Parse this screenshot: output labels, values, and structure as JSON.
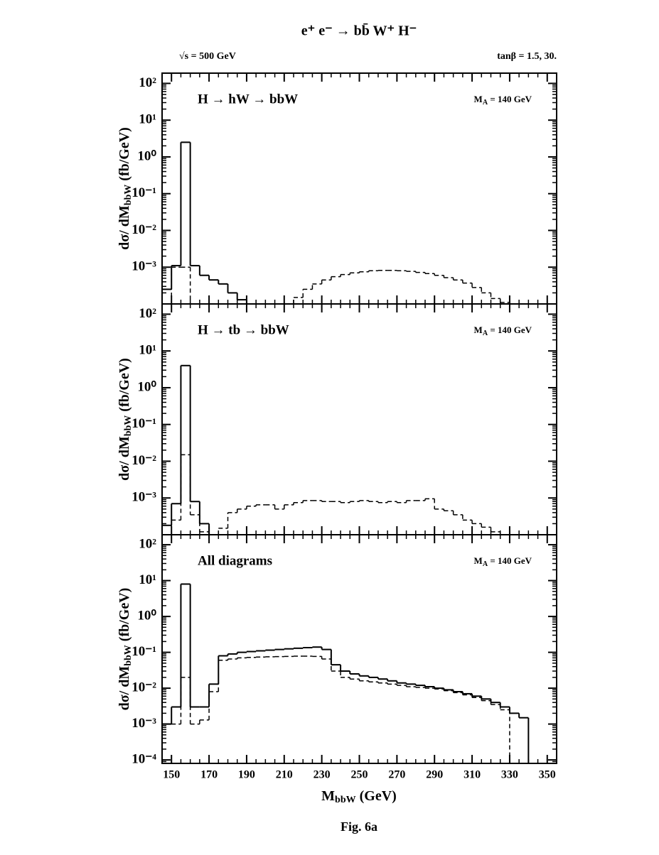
{
  "figure": {
    "title": "e⁺ e⁻ →  bb̄ W⁺ H⁻",
    "energy": "√s =  500 GeV",
    "tan_beta": "tanβ = 1.5, 30.",
    "xlabel": [
      "M",
      "bbW",
      " (GeV)"
    ],
    "caption": "Fig. 6a"
  },
  "chart_data": [
    {
      "type": "histogram",
      "annotation": "H → hW → bbW",
      "mass_label": [
        "M",
        "A",
        " = 140 GeV"
      ],
      "ylabel": [
        "dσ/ dM",
        "bbW",
        " (fb/GeV)"
      ],
      "log_y": true,
      "xlim": [
        145,
        355
      ],
      "ylim": [
        0.0001,
        190
      ],
      "xticks": [
        150,
        170,
        190,
        210,
        230,
        250,
        270,
        290,
        310,
        330,
        350
      ],
      "xtick_labels": false,
      "yticks": [
        {
          "value": 100,
          "label": "10²"
        },
        {
          "value": 10,
          "label": "10¹"
        },
        {
          "value": 1,
          "label": "10⁰"
        },
        {
          "value": 0.1,
          "label": "10⁻¹"
        },
        {
          "value": 0.01,
          "label": "10⁻²"
        },
        {
          "value": 0.001,
          "label": "10⁻³"
        }
      ],
      "bins": [
        145,
        150,
        155,
        160,
        165,
        170,
        175,
        180,
        185,
        190,
        195,
        200,
        205,
        210,
        215,
        220,
        225,
        230,
        235,
        240,
        245,
        250,
        255,
        260,
        265,
        270,
        275,
        280,
        285,
        290,
        295,
        300,
        305,
        310,
        315,
        320,
        325,
        330,
        335,
        340
      ],
      "series": [
        {
          "color": "#000000",
          "dashed": false,
          "values": [
            0.00025,
            0.0011,
            2.5,
            0.0011,
            0.0006,
            0.00045,
            0.00035,
            0.0002,
            0.00013,
            null,
            null,
            null,
            null,
            null,
            null,
            null,
            null,
            null,
            null,
            null,
            null,
            null,
            null,
            null,
            null,
            null,
            null,
            null,
            null,
            null,
            null,
            null,
            null,
            null,
            null,
            null,
            null,
            null,
            null
          ]
        },
        {
          "color": "#000000",
          "dashed": true,
          "values": [
            null,
            0.001,
            0.001,
            null,
            null,
            null,
            null,
            null,
            null,
            null,
            null,
            null,
            null,
            null,
            0.00015,
            0.00025,
            0.00035,
            0.00045,
            0.00055,
            0.00063,
            0.0007,
            0.00075,
            0.0008,
            0.00082,
            0.00082,
            0.0008,
            0.00077,
            0.00072,
            0.00067,
            0.0006,
            0.00052,
            0.00045,
            0.00037,
            0.00028,
            0.0002,
            0.00014,
            0.00011,
            null,
            null
          ]
        }
      ]
    },
    {
      "type": "histogram",
      "annotation": "H → tb → bbW",
      "mass_label": [
        "M",
        "A",
        " = 140 GeV"
      ],
      "ylabel": [
        "dσ/ dM",
        "bbW",
        " (fb/GeV)"
      ],
      "log_y": true,
      "xlim": [
        145,
        355
      ],
      "ylim": [
        0.0001,
        190
      ],
      "xticks": [
        150,
        170,
        190,
        210,
        230,
        250,
        270,
        290,
        310,
        330,
        350
      ],
      "xtick_labels": false,
      "yticks": [
        {
          "value": 100,
          "label": "10²"
        },
        {
          "value": 10,
          "label": "10¹"
        },
        {
          "value": 1,
          "label": "10⁰"
        },
        {
          "value": 0.1,
          "label": "10⁻¹"
        },
        {
          "value": 0.01,
          "label": "10⁻²"
        },
        {
          "value": 0.001,
          "label": "10⁻³"
        }
      ],
      "bins": [
        145,
        150,
        155,
        160,
        165,
        170,
        175,
        180,
        185,
        190,
        195,
        200,
        205,
        210,
        215,
        220,
        225,
        230,
        235,
        240,
        245,
        250,
        255,
        260,
        265,
        270,
        275,
        280,
        285,
        290,
        295,
        300,
        305,
        310,
        315,
        320,
        325,
        330,
        335,
        340
      ],
      "series": [
        {
          "color": "#000000",
          "dashed": false,
          "values": [
            0.00018,
            0.0007,
            4,
            0.0008,
            0.0002,
            0.0001,
            null,
            null,
            null,
            null,
            null,
            null,
            null,
            null,
            null,
            null,
            null,
            null,
            null,
            null,
            null,
            null,
            null,
            null,
            null,
            null,
            null,
            null,
            null,
            null,
            null,
            null,
            null,
            null,
            null,
            null,
            null,
            null,
            null
          ]
        },
        {
          "color": "#000000",
          "dashed": true,
          "values": [
            null,
            0.00025,
            0.015,
            0.00035,
            0.00012,
            null,
            0.00015,
            0.0004,
            0.0005,
            0.0006,
            0.00065,
            0.00065,
            0.0005,
            0.00065,
            0.00075,
            0.00085,
            0.00085,
            0.0008,
            0.0008,
            0.00075,
            0.0008,
            0.00085,
            0.0008,
            0.00075,
            0.0008,
            0.00075,
            0.00085,
            0.00085,
            0.00095,
            0.0005,
            0.00045,
            0.00035,
            0.00025,
            0.0002,
            0.00016,
            0.00012,
            null,
            null,
            null
          ]
        }
      ]
    },
    {
      "type": "histogram",
      "annotation": "All diagrams",
      "mass_label": [
        "M",
        "A",
        " = 140 GeV"
      ],
      "ylabel": [
        "dσ/ dM",
        "bbW",
        " (fb/GeV)"
      ],
      "log_y": true,
      "xlim": [
        145,
        355
      ],
      "ylim": [
        8e-05,
        190
      ],
      "xticks": [
        150,
        170,
        190,
        210,
        230,
        250,
        270,
        290,
        310,
        330,
        350
      ],
      "xtick_labels": true,
      "yticks": [
        {
          "value": 100,
          "label": "10²"
        },
        {
          "value": 10,
          "label": "10¹"
        },
        {
          "value": 1,
          "label": "10⁰"
        },
        {
          "value": 0.1,
          "label": "10⁻¹"
        },
        {
          "value": 0.01,
          "label": "10⁻²"
        },
        {
          "value": 0.001,
          "label": "10⁻³"
        },
        {
          "value": 0.0001,
          "label": "10⁻⁴"
        }
      ],
      "bins": [
        145,
        150,
        155,
        160,
        165,
        170,
        175,
        180,
        185,
        190,
        195,
        200,
        205,
        210,
        215,
        220,
        225,
        230,
        235,
        240,
        245,
        250,
        255,
        260,
        265,
        270,
        275,
        280,
        285,
        290,
        295,
        300,
        305,
        310,
        315,
        320,
        325,
        330,
        335,
        340
      ],
      "series": [
        {
          "color": "#000000",
          "dashed": false,
          "values": [
            0.001,
            0.003,
            8,
            0.003,
            0.003,
            0.013,
            0.08,
            0.09,
            0.1,
            0.105,
            0.11,
            0.115,
            0.12,
            0.125,
            0.13,
            0.135,
            0.14,
            0.12,
            0.045,
            0.03,
            0.025,
            0.022,
            0.02,
            0.018,
            0.016,
            0.014,
            0.013,
            0.012,
            0.011,
            0.01,
            0.009,
            0.008,
            0.007,
            0.006,
            0.005,
            0.004,
            0.003,
            0.002,
            0.0015
          ]
        },
        {
          "color": "#000000",
          "dashed": true,
          "values": [
            0.001,
            0.001,
            0.02,
            0.001,
            0.0013,
            0.008,
            0.06,
            0.065,
            0.07,
            0.072,
            0.074,
            0.075,
            0.076,
            0.077,
            0.078,
            0.078,
            0.077,
            0.065,
            0.03,
            0.02,
            0.018,
            0.016,
            0.015,
            0.014,
            0.013,
            0.012,
            0.011,
            0.0105,
            0.01,
            0.0095,
            0.0085,
            0.0075,
            0.0065,
            0.0055,
            0.0045,
            0.0035,
            0.0025,
            null,
            null
          ]
        }
      ]
    }
  ]
}
